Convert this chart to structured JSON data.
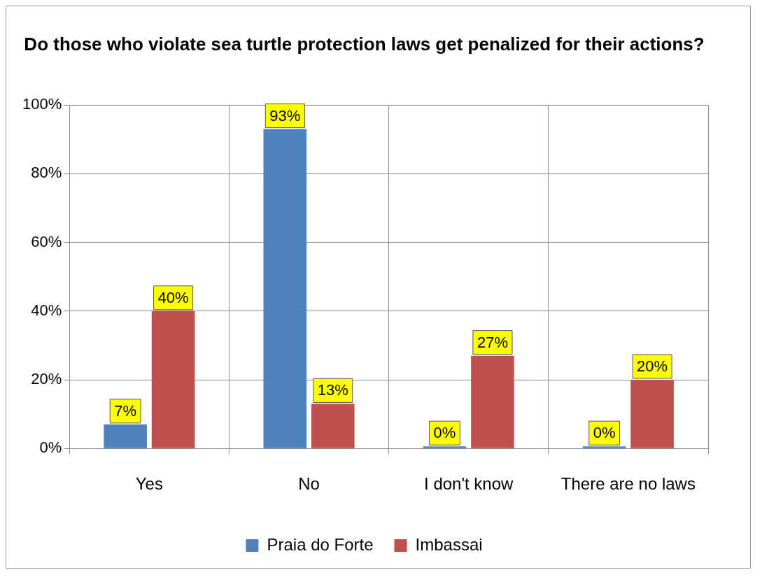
{
  "chart_data": {
    "type": "bar",
    "title": "Do those who violate sea turtle protection laws get penalized for their actions?",
    "categories": [
      "Yes",
      "No",
      "I don't know",
      "There are no laws"
    ],
    "series": [
      {
        "name": "Praia do Forte",
        "color": "#4f81bd",
        "values": [
          7,
          93,
          0,
          0
        ],
        "value_labels": [
          "7%",
          "93%",
          "0%",
          "0%"
        ]
      },
      {
        "name": "Imbassai",
        "color": "#c0504d",
        "values": [
          40,
          13,
          27,
          20
        ],
        "value_labels": [
          "40%",
          "13%",
          "27%",
          "20%"
        ]
      }
    ],
    "ylim": [
      0,
      100
    ],
    "yticks": [
      {
        "value": 0,
        "label": "0%"
      },
      {
        "value": 20,
        "label": "20%"
      },
      {
        "value": 40,
        "label": "40%"
      },
      {
        "value": 60,
        "label": "60%"
      },
      {
        "value": 80,
        "label": "80%"
      },
      {
        "value": 100,
        "label": "100%"
      }
    ],
    "grid": true,
    "legend": "bottom"
  }
}
